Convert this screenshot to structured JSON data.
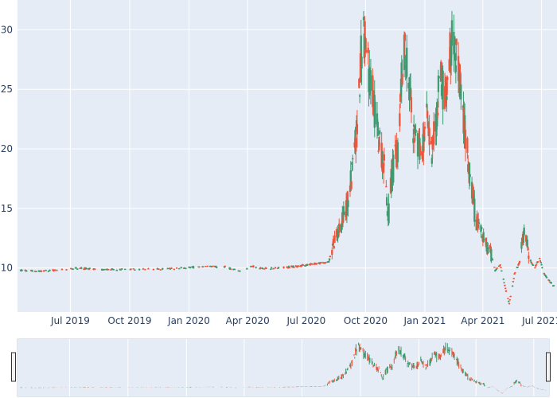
{
  "chart_data": {
    "type": "candlestick",
    "title": "",
    "xlabel": "",
    "ylabel": "",
    "x_range": [
      "2019-04-10",
      "2021-07-25"
    ],
    "y_range": [
      6.3,
      32.5
    ],
    "y_ticks": [
      10,
      15,
      20,
      25,
      30
    ],
    "x_ticks": [
      {
        "date": "2019-07-01",
        "label": "Jul 2019"
      },
      {
        "date": "2019-10-01",
        "label": "Oct 2019"
      },
      {
        "date": "2020-01-01",
        "label": "Jan 2020"
      },
      {
        "date": "2020-04-01",
        "label": "Apr 2020"
      },
      {
        "date": "2020-07-01",
        "label": "Jul 2020"
      },
      {
        "date": "2020-10-01",
        "label": "Oct 2020"
      },
      {
        "date": "2021-01-01",
        "label": "Jan 2021"
      },
      {
        "date": "2021-04-01",
        "label": "Apr 2021"
      },
      {
        "date": "2021-07-01",
        "label": "Jul 2021"
      }
    ],
    "grid": true,
    "legend": "none",
    "rangeslider": true,
    "increasing_color": "#3d9970",
    "decreasing_color": "#ef553b",
    "background_color": "#e5ecf6",
    "anchors": [
      [
        "2019-04-15",
        9.8
      ],
      [
        "2019-05-20",
        9.75
      ],
      [
        "2019-06-25",
        9.9
      ],
      [
        "2019-07-10",
        10.0
      ],
      [
        "2019-08-20",
        9.85
      ],
      [
        "2019-10-01",
        9.9
      ],
      [
        "2019-11-15",
        9.9
      ],
      [
        "2019-12-20",
        10.0
      ],
      [
        "2020-01-20",
        10.1
      ],
      [
        "2020-02-25",
        10.1
      ],
      [
        "2020-03-15",
        9.8
      ],
      [
        "2020-03-25",
        9.6
      ],
      [
        "2020-04-05",
        10.2
      ],
      [
        "2020-04-20",
        10.0
      ],
      [
        "2020-05-20",
        10.0
      ],
      [
        "2020-06-25",
        10.2
      ],
      [
        "2020-07-20",
        10.4
      ],
      [
        "2020-08-05",
        10.5
      ],
      [
        "2020-08-12",
        12.0
      ],
      [
        "2020-08-25",
        13.8
      ],
      [
        "2020-09-05",
        16.0
      ],
      [
        "2020-09-12",
        18.5
      ],
      [
        "2020-09-18",
        22.0
      ],
      [
        "2020-09-23",
        27.0
      ],
      [
        "2020-09-27",
        30.5
      ],
      [
        "2020-10-03",
        27.5
      ],
      [
        "2020-10-10",
        25.5
      ],
      [
        "2020-10-18",
        22.0
      ],
      [
        "2020-10-25",
        20.0
      ],
      [
        "2020-11-01",
        18.0
      ],
      [
        "2020-11-05",
        14.0
      ],
      [
        "2020-11-10",
        17.5
      ],
      [
        "2020-11-20",
        20.0
      ],
      [
        "2020-11-26",
        26.5
      ],
      [
        "2020-12-02",
        28.5
      ],
      [
        "2020-12-08",
        25.0
      ],
      [
        "2020-12-16",
        21.0
      ],
      [
        "2020-12-25",
        19.5
      ],
      [
        "2021-01-05",
        22.5
      ],
      [
        "2021-01-10",
        19.5
      ],
      [
        "2021-01-18",
        22.0
      ],
      [
        "2021-01-25",
        26.5
      ],
      [
        "2021-02-01",
        24.0
      ],
      [
        "2021-02-08",
        28.0
      ],
      [
        "2021-02-15",
        30.0
      ],
      [
        "2021-02-22",
        26.0
      ],
      [
        "2021-03-01",
        23.0
      ],
      [
        "2021-03-05",
        21.0
      ],
      [
        "2021-03-12",
        18.0
      ],
      [
        "2021-03-20",
        14.5
      ],
      [
        "2021-04-01",
        12.5
      ],
      [
        "2021-04-12",
        11.5
      ],
      [
        "2021-04-20",
        9.8
      ],
      [
        "2021-04-28",
        10.3
      ],
      [
        "2021-05-05",
        8.5
      ],
      [
        "2021-05-12",
        7.0
      ],
      [
        "2021-05-20",
        9.5
      ],
      [
        "2021-05-28",
        10.5
      ],
      [
        "2021-06-05",
        13.5
      ],
      [
        "2021-06-12",
        10.8
      ],
      [
        "2021-06-20",
        10.0
      ],
      [
        "2021-06-28",
        10.8
      ],
      [
        "2021-07-05",
        9.5
      ],
      [
        "2021-07-12",
        9.0
      ],
      [
        "2021-07-20",
        8.5
      ]
    ]
  }
}
